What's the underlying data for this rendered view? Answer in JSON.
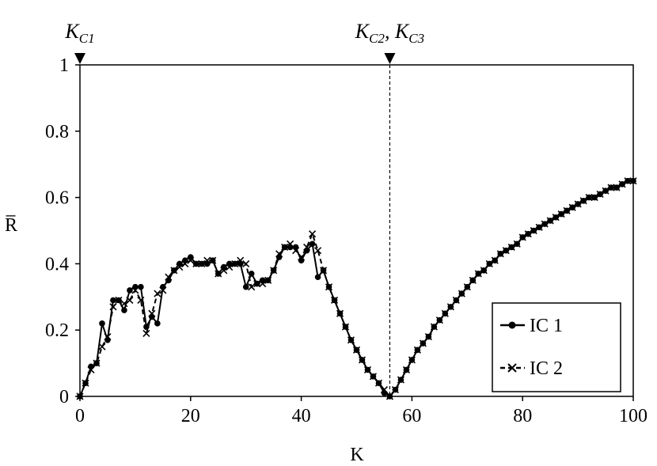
{
  "chart_data": {
    "type": "line",
    "title": "",
    "xlabel": "K",
    "ylabel": "R̅",
    "xlim": [
      0,
      100
    ],
    "ylim": [
      0,
      1
    ],
    "xticks": [
      0,
      20,
      40,
      60,
      80,
      100
    ],
    "xtick_labels": [
      "0",
      "20",
      "40",
      "60",
      "80",
      "100"
    ],
    "yticks": [
      0,
      0.2,
      0.4,
      0.6,
      0.8,
      1
    ],
    "ytick_labels": [
      "0",
      "0.2",
      "0.4",
      "0.6",
      "0.8",
      "1"
    ],
    "grid": false,
    "legend_position": "bottom-right",
    "annotations": [
      {
        "label": "K_C1",
        "base": "K",
        "sub": "C1",
        "x": 0
      },
      {
        "label": "K_C2, K_C3",
        "base": "K",
        "sub": "C2",
        "base2": "K",
        "sub2": "C3",
        "x": 56
      }
    ],
    "series": [
      {
        "name": "IC 1",
        "marker": "circle",
        "line": "solid",
        "x": [
          0,
          1,
          2,
          3,
          4,
          5,
          6,
          7,
          8,
          9,
          10,
          11,
          12,
          13,
          14,
          15,
          16,
          17,
          18,
          19,
          20,
          21,
          22,
          23,
          24,
          25,
          26,
          27,
          28,
          29,
          30,
          31,
          32,
          33,
          34,
          35,
          36,
          37,
          38,
          39,
          40,
          41,
          42,
          43,
          44,
          45,
          46,
          47,
          48,
          49,
          50,
          51,
          52,
          53,
          54,
          55,
          56,
          57,
          58,
          59,
          60,
          61,
          62,
          63,
          64,
          65,
          66,
          67,
          68,
          69,
          70,
          71,
          72,
          73,
          74,
          75,
          76,
          77,
          78,
          79,
          80,
          81,
          82,
          83,
          84,
          85,
          86,
          87,
          88,
          89,
          90,
          91,
          92,
          93,
          94,
          95,
          96,
          97,
          98,
          99,
          100
        ],
        "values": [
          0.0,
          0.04,
          0.09,
          0.1,
          0.22,
          0.17,
          0.29,
          0.29,
          0.26,
          0.32,
          0.33,
          0.33,
          0.21,
          0.24,
          0.22,
          0.33,
          0.35,
          0.38,
          0.4,
          0.41,
          0.42,
          0.4,
          0.4,
          0.4,
          0.41,
          0.37,
          0.39,
          0.4,
          0.4,
          0.4,
          0.33,
          0.37,
          0.34,
          0.35,
          0.35,
          0.38,
          0.42,
          0.45,
          0.45,
          0.45,
          0.41,
          0.44,
          0.46,
          0.36,
          0.38,
          0.33,
          0.29,
          0.25,
          0.21,
          0.17,
          0.14,
          0.11,
          0.08,
          0.06,
          0.04,
          0.01,
          0.0,
          0.02,
          0.05,
          0.08,
          0.11,
          0.14,
          0.16,
          0.18,
          0.21,
          0.23,
          0.25,
          0.27,
          0.29,
          0.31,
          0.33,
          0.35,
          0.37,
          0.38,
          0.4,
          0.41,
          0.43,
          0.44,
          0.45,
          0.46,
          0.48,
          0.49,
          0.5,
          0.51,
          0.52,
          0.53,
          0.54,
          0.55,
          0.56,
          0.57,
          0.58,
          0.59,
          0.6,
          0.6,
          0.61,
          0.62,
          0.63,
          0.63,
          0.64,
          0.65,
          0.65
        ]
      },
      {
        "name": "IC 2",
        "marker": "x",
        "line": "dashed",
        "x": [
          0,
          1,
          2,
          3,
          4,
          5,
          6,
          7,
          8,
          9,
          10,
          11,
          12,
          13,
          14,
          15,
          16,
          17,
          18,
          19,
          20,
          21,
          22,
          23,
          24,
          25,
          26,
          27,
          28,
          29,
          30,
          31,
          32,
          33,
          34,
          35,
          36,
          37,
          38,
          39,
          40,
          41,
          42,
          43,
          44,
          45,
          46,
          47,
          48,
          49,
          50,
          51,
          52,
          53,
          54,
          55,
          56,
          57,
          58,
          59,
          60,
          61,
          62,
          63,
          64,
          65,
          66,
          67,
          68,
          69,
          70,
          71,
          72,
          73,
          74,
          75,
          76,
          77,
          78,
          79,
          80,
          81,
          82,
          83,
          84,
          85,
          86,
          87,
          88,
          89,
          90,
          91,
          92,
          93,
          94,
          95,
          96,
          97,
          98,
          99,
          100
        ],
        "values": [
          0.0,
          0.04,
          0.08,
          0.1,
          0.15,
          0.18,
          0.27,
          0.29,
          0.28,
          0.29,
          0.32,
          0.29,
          0.19,
          0.25,
          0.31,
          0.32,
          0.36,
          0.38,
          0.39,
          0.4,
          0.41,
          0.4,
          0.4,
          0.41,
          0.41,
          0.37,
          0.38,
          0.39,
          0.4,
          0.41,
          0.4,
          0.33,
          0.34,
          0.34,
          0.35,
          0.38,
          0.43,
          0.45,
          0.46,
          0.44,
          0.42,
          0.45,
          0.49,
          0.44,
          0.38,
          0.33,
          0.29,
          0.25,
          0.21,
          0.17,
          0.14,
          0.11,
          0.08,
          0.06,
          0.04,
          0.02,
          0.0,
          0.02,
          0.05,
          0.08,
          0.11,
          0.14,
          0.16,
          0.18,
          0.21,
          0.23,
          0.25,
          0.27,
          0.29,
          0.31,
          0.33,
          0.35,
          0.37,
          0.38,
          0.4,
          0.41,
          0.43,
          0.44,
          0.45,
          0.46,
          0.48,
          0.49,
          0.5,
          0.51,
          0.52,
          0.53,
          0.54,
          0.55,
          0.56,
          0.57,
          0.58,
          0.59,
          0.6,
          0.6,
          0.61,
          0.62,
          0.63,
          0.63,
          0.64,
          0.65,
          0.65
        ]
      }
    ]
  }
}
